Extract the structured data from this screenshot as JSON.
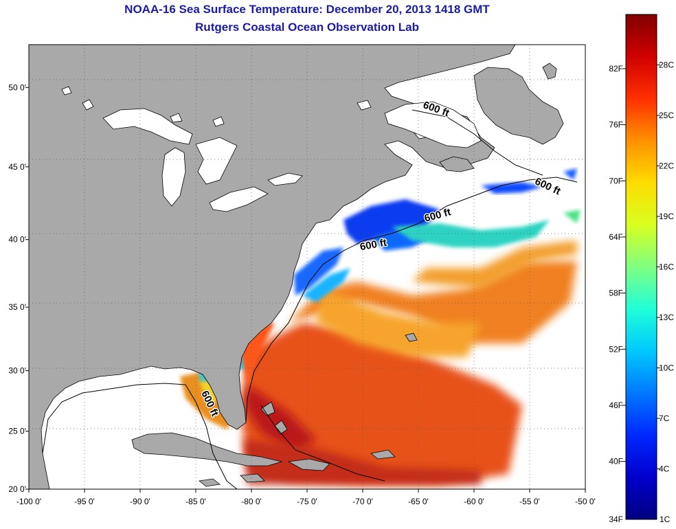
{
  "title": "NOAA-16 Sea Surface Temperature:  December 20, 2013 1418 GMT",
  "subtitle": "Rutgers Coastal Ocean Observation Lab",
  "map": {
    "lon_range": [
      -100,
      -50
    ],
    "lat_range": [
      20,
      52.5
    ],
    "lon_ticks": [
      "-100 0'",
      "-95 0'",
      "-90 0'",
      "-85 0'",
      "-80 0'",
      "-75 0'",
      "-70 0'",
      "-65 0'",
      "-60 0'",
      "-55 0'",
      "-50 0'"
    ],
    "lat_ticks": [
      {
        "lat": 20,
        "label": "20 0'"
      },
      {
        "lat": 25,
        "label": "25 0'"
      },
      {
        "lat": 30,
        "label": "30 0'"
      },
      {
        "lat": 35,
        "label": "35 0'"
      },
      {
        "lat": 40,
        "label": "40 0'"
      },
      {
        "lat": 45,
        "label": "45 0'"
      },
      {
        "lat": 50,
        "label": "50 0'"
      }
    ],
    "grid": "dotted",
    "land_color": "#a9a9a9",
    "no_data_color": "#ffffff",
    "isobath_labels": [
      {
        "text": "600 ft",
        "lon": -63.5,
        "lat": 48.5,
        "rot": 20
      },
      {
        "text": "600 ft",
        "lon": -53.5,
        "lat": 43.5,
        "rot": 25
      },
      {
        "text": "600 ft",
        "lon": -63.2,
        "lat": 41.5,
        "rot": -15
      },
      {
        "text": "600 ft",
        "lon": -69.0,
        "lat": 39.4,
        "rot": -10
      },
      {
        "text": "600 ft",
        "lon": -84.0,
        "lat": 27.2,
        "rot": 65
      }
    ]
  },
  "colorbar": {
    "f_labels": [
      {
        "v": 40,
        "label": "40F"
      },
      {
        "v": 46,
        "label": "46F"
      },
      {
        "v": 52,
        "label": "52F"
      },
      {
        "v": 58,
        "label": "58F"
      },
      {
        "v": 64,
        "label": "64F"
      },
      {
        "v": 70,
        "label": "70F"
      },
      {
        "v": 76,
        "label": "76F"
      },
      {
        "v": 82,
        "label": "82F"
      }
    ],
    "c_labels": [
      {
        "v": 4,
        "label": "4C"
      },
      {
        "v": 7,
        "label": "7C"
      },
      {
        "v": 10,
        "label": "10C"
      },
      {
        "v": 13,
        "label": "13C"
      },
      {
        "v": 16,
        "label": "16C"
      },
      {
        "v": 19,
        "label": "19C"
      },
      {
        "v": 22,
        "label": "22C"
      },
      {
        "v": 25,
        "label": "25C"
      },
      {
        "v": 28,
        "label": "28C"
      }
    ],
    "min_f_label": "34F",
    "min_c_label": "1C",
    "range_c": [
      1,
      31
    ],
    "colors": [
      "#000080",
      "#0000cd",
      "#0028ff",
      "#0078ff",
      "#00c8ff",
      "#20ffd8",
      "#80ff80",
      "#d8ff20",
      "#ffdc00",
      "#ff9000",
      "#ff3000",
      "#d00000",
      "#800000"
    ]
  }
}
